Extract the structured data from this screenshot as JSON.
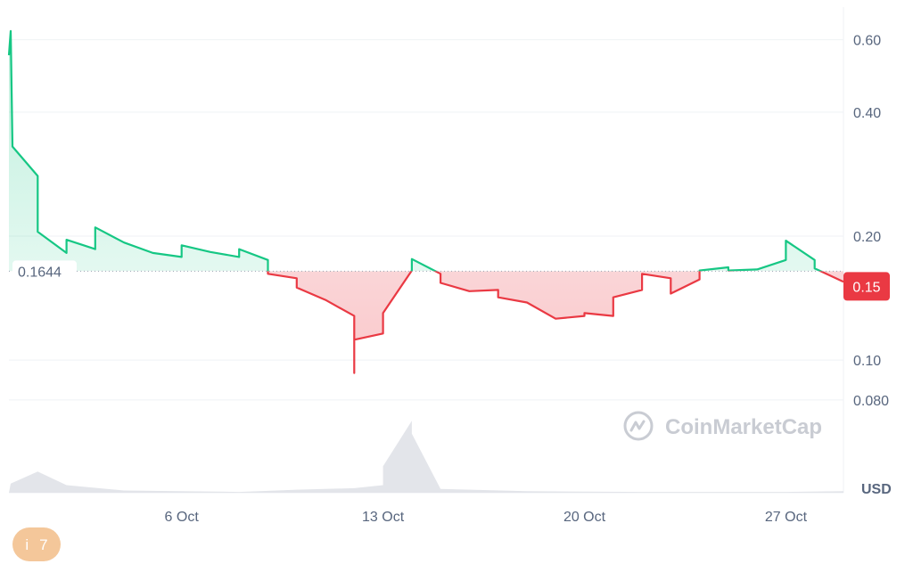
{
  "chart_data": {
    "type": "line",
    "y_scale": "log",
    "ylim": [
      0.072,
      0.72
    ],
    "y_ticks": [
      {
        "value": 0.6,
        "label": "0.60"
      },
      {
        "value": 0.4,
        "label": "0.40"
      },
      {
        "value": 0.2,
        "label": "0.20"
      },
      {
        "value": 0.1,
        "label": "0.10"
      },
      {
        "value": 0.08,
        "label": "0.080"
      }
    ],
    "x_range": [
      "2024-09-30",
      "2024-10-29"
    ],
    "x_ticks": [
      {
        "date": "2024-10-06",
        "label": "6 Oct"
      },
      {
        "date": "2024-10-13",
        "label": "13 Oct"
      },
      {
        "date": "2024-10-20",
        "label": "20 Oct"
      },
      {
        "date": "2024-10-27",
        "label": "27 Oct"
      }
    ],
    "unit_label": "USD",
    "reference_price": 0.1644,
    "reference_label": "0.1644",
    "current_price_label": "0.15",
    "colors": {
      "up": "#16c784",
      "down": "#ea3943",
      "grid": "#eff2f5",
      "volume": "#e3e5ea"
    },
    "series": [
      {
        "points": [
          [
            "2024-09-30",
            0.55
          ],
          [
            "2024-09-30",
            0.63
          ],
          [
            "2024-09-30",
            0.33
          ],
          [
            "2024-10-01",
            0.28
          ],
          [
            "2024-10-01",
            0.235
          ],
          [
            "2024-10-01",
            0.205
          ],
          [
            "2024-10-02",
            0.182
          ],
          [
            "2024-10-02",
            0.196
          ],
          [
            "2024-10-03",
            0.186
          ],
          [
            "2024-10-03",
            0.21
          ],
          [
            "2024-10-04",
            0.193
          ],
          [
            "2024-10-05",
            0.182
          ],
          [
            "2024-10-06",
            0.178
          ],
          [
            "2024-10-06",
            0.19
          ],
          [
            "2024-10-07",
            0.183
          ],
          [
            "2024-10-08",
            0.178
          ],
          [
            "2024-10-08",
            0.186
          ],
          [
            "2024-10-09",
            0.175
          ],
          [
            "2024-10-09",
            0.162
          ],
          [
            "2024-10-10",
            0.158
          ],
          [
            "2024-10-10",
            0.15
          ],
          [
            "2024-10-11",
            0.14
          ],
          [
            "2024-10-12",
            0.128
          ],
          [
            "2024-10-12",
            0.093
          ],
          [
            "2024-10-12",
            0.112
          ],
          [
            "2024-10-13",
            0.116
          ],
          [
            "2024-10-13",
            0.13
          ],
          [
            "2024-10-14",
            0.165
          ],
          [
            "2024-10-14",
            0.176
          ],
          [
            "2024-10-15",
            0.162
          ],
          [
            "2024-10-15",
            0.154
          ],
          [
            "2024-10-16",
            0.147
          ],
          [
            "2024-10-17",
            0.148
          ],
          [
            "2024-10-17",
            0.142
          ],
          [
            "2024-10-18",
            0.138
          ],
          [
            "2024-10-19",
            0.126
          ],
          [
            "2024-10-20",
            0.128
          ],
          [
            "2024-10-20",
            0.13
          ],
          [
            "2024-10-21",
            0.128
          ],
          [
            "2024-10-21",
            0.142
          ],
          [
            "2024-10-22",
            0.148
          ],
          [
            "2024-10-22",
            0.162
          ],
          [
            "2024-10-23",
            0.158
          ],
          [
            "2024-10-23",
            0.145
          ],
          [
            "2024-10-24",
            0.157
          ],
          [
            "2024-10-24",
            0.165
          ],
          [
            "2024-10-25",
            0.168
          ],
          [
            "2024-10-25",
            0.165
          ],
          [
            "2024-10-26",
            0.166
          ],
          [
            "2024-10-27",
            0.175
          ],
          [
            "2024-10-27",
            0.195
          ],
          [
            "2024-10-28",
            0.175
          ],
          [
            "2024-10-28",
            0.167
          ],
          [
            "2024-10-29",
            0.155
          ]
        ]
      }
    ],
    "volume_relative": [
      [
        "2024-09-30",
        0.0
      ],
      [
        "2024-09-30",
        0.12
      ],
      [
        "2024-10-01",
        0.28
      ],
      [
        "2024-10-02",
        0.1
      ],
      [
        "2024-10-04",
        0.03
      ],
      [
        "2024-10-08",
        0.01
      ],
      [
        "2024-10-10",
        0.04
      ],
      [
        "2024-10-12",
        0.06
      ],
      [
        "2024-10-13",
        0.1
      ],
      [
        "2024-10-13",
        0.35
      ],
      [
        "2024-10-14",
        0.95
      ],
      [
        "2024-10-14",
        0.78
      ],
      [
        "2024-10-15",
        0.05
      ],
      [
        "2024-10-18",
        0.02
      ],
      [
        "2024-10-22",
        0.01
      ],
      [
        "2024-10-27",
        0.01
      ],
      [
        "2024-10-29",
        0.02
      ]
    ],
    "watermark": "CoinMarketCap"
  },
  "badge": {
    "icon": "i",
    "count": "7"
  }
}
